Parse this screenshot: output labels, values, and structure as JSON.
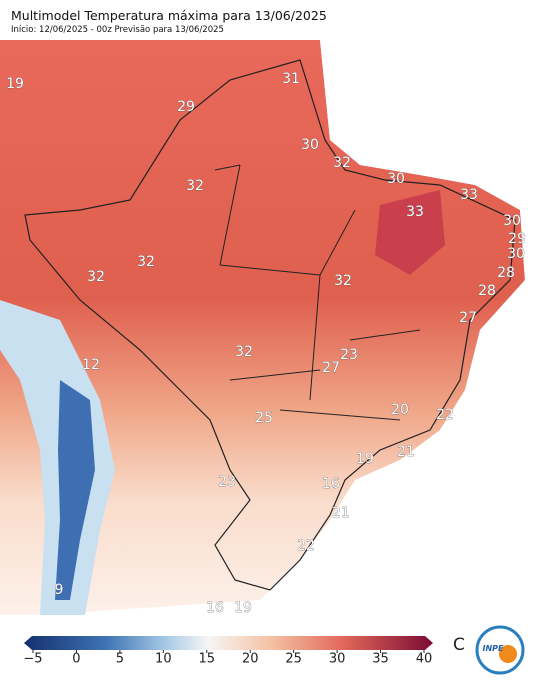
{
  "header": {
    "title": "Multimodel Temperatura máxima para 13/06/2025",
    "subtitle": "Início: 12/06/2025 - 00z  Previsão para 13/06/2025"
  },
  "map": {
    "labels": [
      19,
      29,
      31,
      30,
      32,
      32,
      30,
      33,
      33,
      30,
      29,
      30,
      28,
      28,
      27,
      32,
      32,
      32,
      32,
      12,
      23,
      27,
      25,
      20,
      22,
      19,
      21,
      16,
      23,
      21,
      22,
      9,
      16,
      19
    ]
  },
  "colorbar": {
    "ticks": [
      {
        "value": -5,
        "label": "−5"
      },
      0,
      5,
      10,
      15,
      20,
      25,
      30,
      35,
      40
    ],
    "unit": "C"
  },
  "logo": "INPE"
}
